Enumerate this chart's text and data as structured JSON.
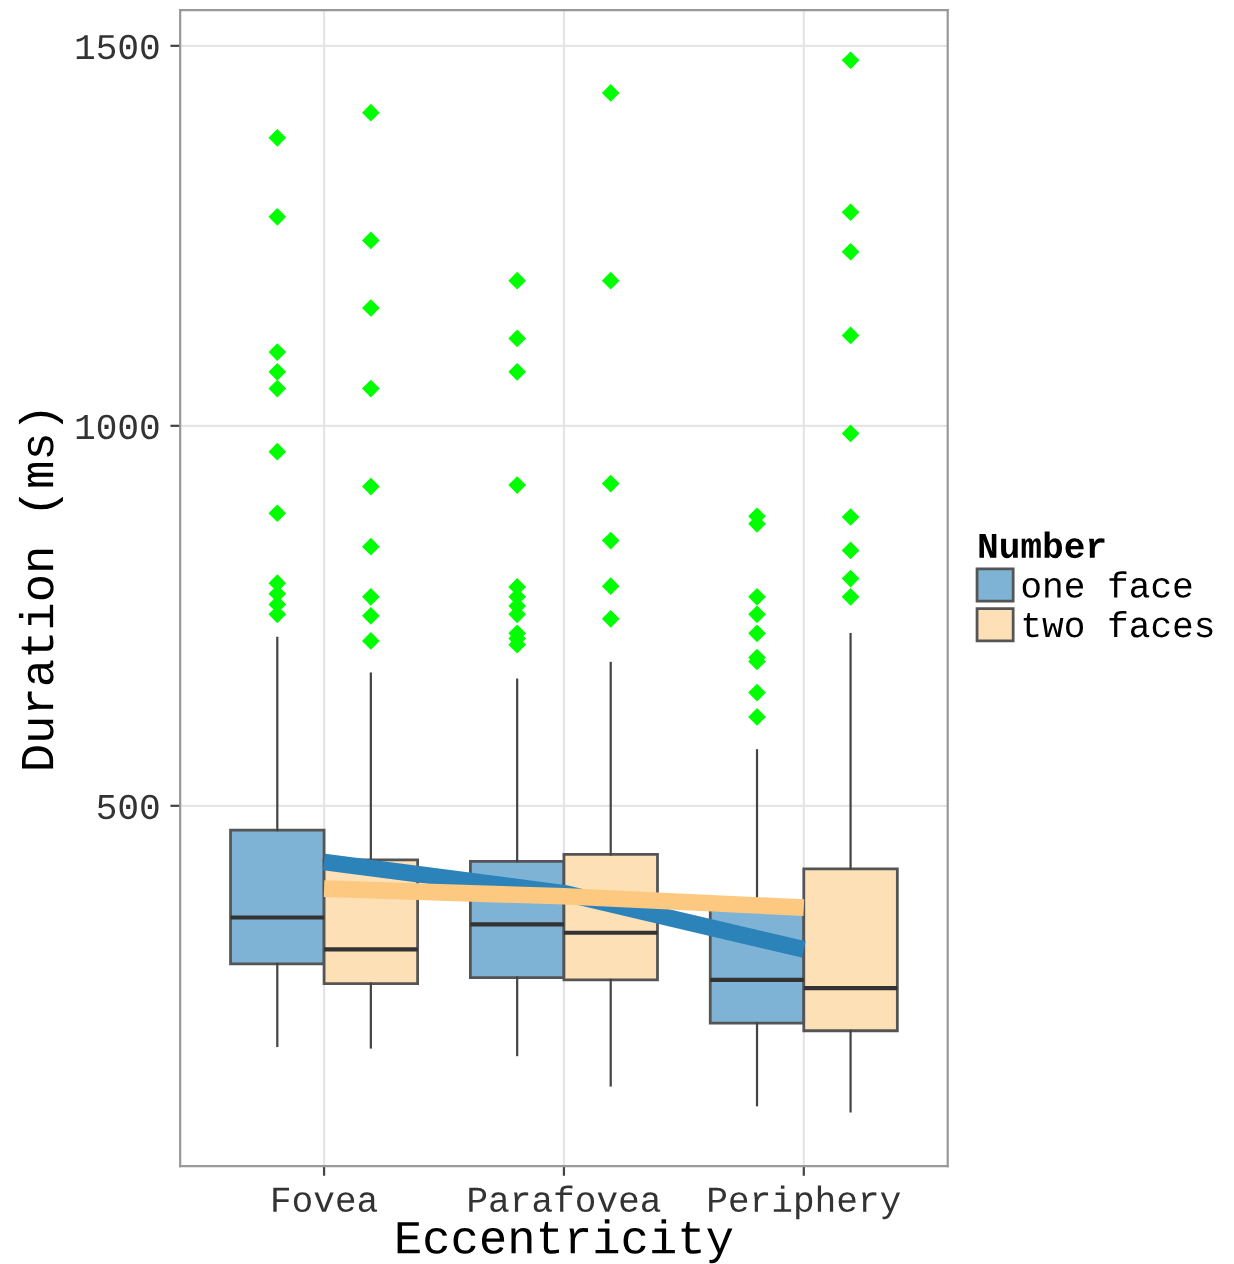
{
  "chart_data": {
    "type": "box",
    "xlabel": "Eccentricity",
    "ylabel": "Duration (ms)",
    "legend_title": "Number",
    "categories": [
      "Fovea",
      "Parafovea",
      "Periphery"
    ],
    "ylim": [
      26,
      1547
    ],
    "yticks": [
      500,
      1000,
      1500
    ],
    "grid": true,
    "legend": "right",
    "marker": "diamond",
    "series": [
      {
        "name": "one face",
        "color": "#7fb3d5",
        "boxes": [
          {
            "low": 184,
            "q1": 292,
            "median": 353,
            "q3": 468,
            "high": 721,
            "outliers": [
              1379,
              1275,
              1097,
              1071,
              1049,
              966,
              885,
              793,
              779,
              765,
              752
            ]
          },
          {
            "low": 172,
            "q1": 274,
            "median": 344,
            "q3": 427,
            "high": 666,
            "outliers": [
              1191,
              1115,
              1071,
              922,
              788,
              775,
              763,
              752,
              727,
              720,
              712
            ]
          },
          {
            "low": 106,
            "q1": 214,
            "median": 271,
            "q3": 363,
            "high": 573,
            "outliers": [
              881,
              871,
              775,
              752,
              727,
              695,
              690,
              649,
              617
            ]
          }
        ]
      },
      {
        "name": "two faces",
        "color": "#fde0b6",
        "boxes": [
          {
            "low": 182,
            "q1": 266,
            "median": 311,
            "q3": 429,
            "high": 674,
            "outliers": [
              1412,
              1244,
              1155,
              1049,
              920,
              841,
              775,
              750,
              717
            ]
          },
          {
            "low": 132,
            "q1": 271,
            "median": 333,
            "q3": 436,
            "high": 688,
            "outliers": [
              1438,
              1191,
              924,
              849,
              789,
              746
            ]
          },
          {
            "low": 98,
            "q1": 204,
            "median": 260,
            "q3": 417,
            "high": 726,
            "outliers": [
              1481,
              1281,
              1229,
              1119,
              990,
              880,
              836,
              799,
              775
            ]
          }
        ]
      },
      {
        "type": "line",
        "marker": "none",
        "color": "#2b83ba",
        "values": [
          426,
          385,
          311
        ]
      },
      {
        "type": "line",
        "marker": "none",
        "color": "#fdc980",
        "values": [
          391,
          381,
          366
        ]
      }
    ]
  }
}
